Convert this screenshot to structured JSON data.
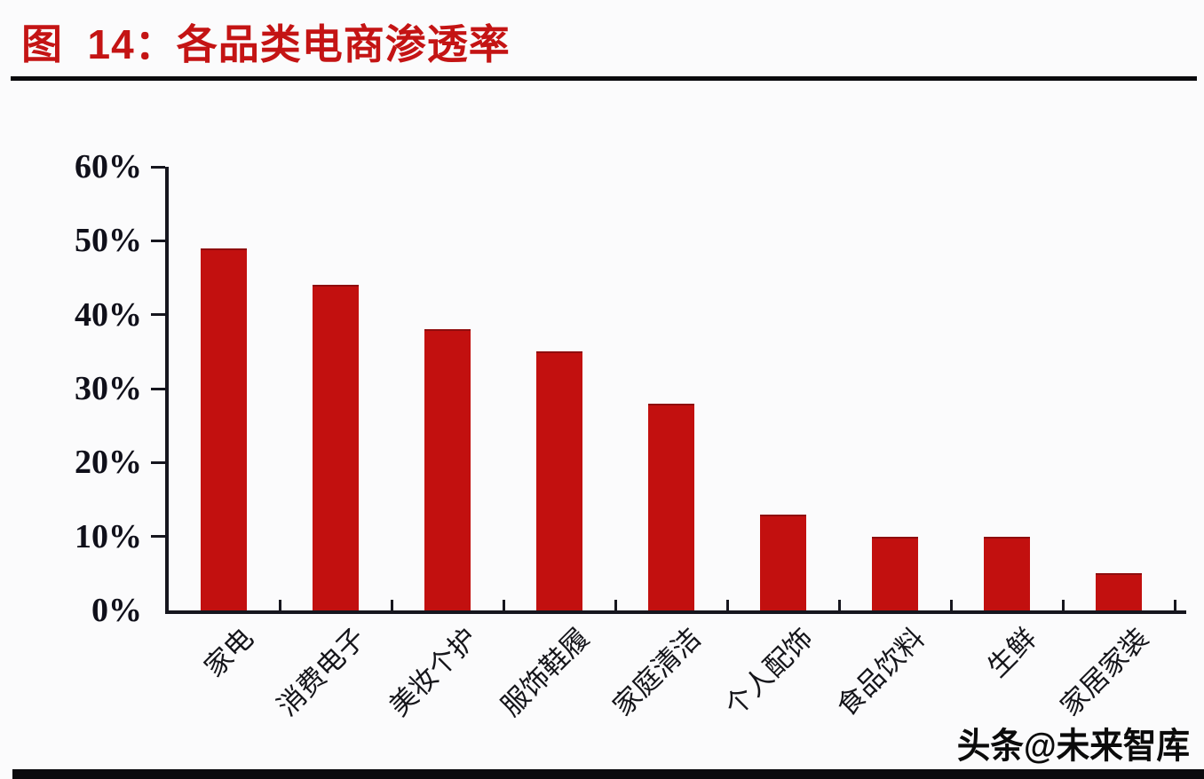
{
  "page": {
    "title": "图  14：各品类电商渗透率",
    "watermark": "头条@未来智库"
  },
  "chart_data": {
    "type": "bar",
    "figure_label": "图 14",
    "title": "各品类电商渗透率",
    "categories": [
      "家电",
      "消费电子",
      "美妆个护",
      "服饰鞋履",
      "家庭清洁",
      "个人配饰",
      "食品饮料",
      "生鲜",
      "家居家装"
    ],
    "values": [
      49,
      44,
      38,
      35,
      28,
      13,
      10,
      10,
      5
    ],
    "value_unit": "%",
    "xlabel": "",
    "ylabel": "",
    "ylim": [
      0,
      60
    ],
    "ytick_step": 10,
    "ytick_labels": [
      "0%",
      "10%",
      "20%",
      "30%",
      "40%",
      "50%",
      "60%"
    ],
    "grid": false,
    "legend": "none",
    "bar_color": "#C2100F",
    "bar_top_edge_color": "#8F0D0E",
    "axis_color": "#16161E",
    "title_color": "#C41414",
    "background_color": "#FBFBFC"
  }
}
